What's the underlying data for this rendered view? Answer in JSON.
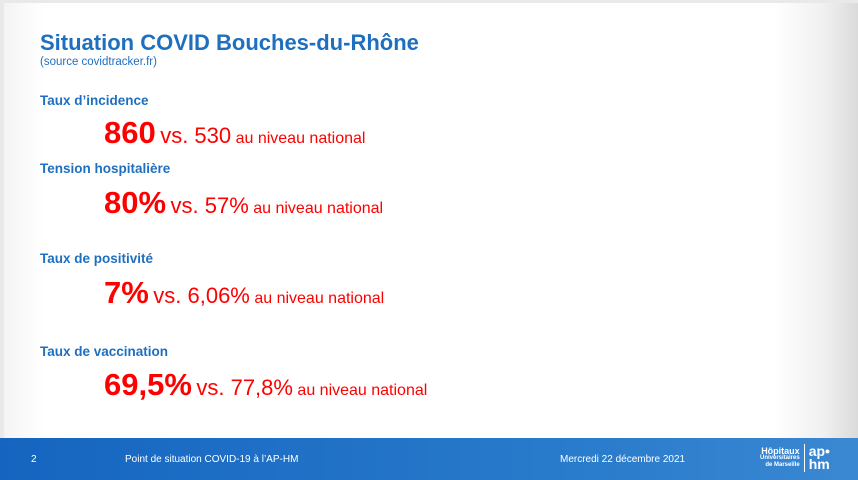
{
  "title": "Situation COVID Bouches-du-Rhône",
  "source": "(source covidtracker.fr)",
  "indicators": [
    {
      "label": "Taux d’incidence",
      "value": "860",
      "vs": "vs. 530",
      "national": "au niveau national"
    },
    {
      "label": "Tension hospitalière",
      "value": "80%",
      "vs": "vs. 57%",
      "national": "au niveau national"
    },
    {
      "label": "Taux de positivité",
      "value": "7%",
      "vs": "vs. 6,06%",
      "national": "au niveau national"
    },
    {
      "label": "Taux de vaccination",
      "value": "69,5%",
      "vs": "vs. 77,8%",
      "national": "au niveau national"
    }
  ],
  "footer": {
    "page": "2",
    "subject": "Point de situation COVID-19 à l’AP-HM",
    "date": "Mercredi 22 décembre 2021",
    "logo": {
      "line1": "Hôpitaux",
      "line2": "Universitaires",
      "line3": "de Marseille",
      "ap": "ap•",
      "hm": "hm"
    }
  },
  "colors": {
    "blue": "#1f6fc0",
    "red": "#ff0000"
  }
}
